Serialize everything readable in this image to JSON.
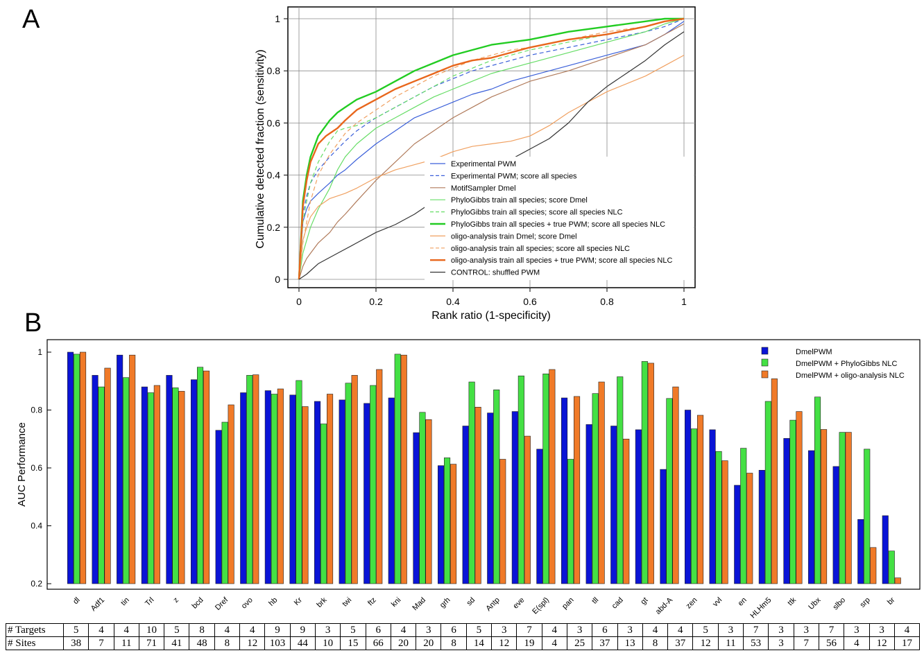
{
  "panel_a": {
    "letter": "A",
    "xlabel": "Rank ratio (1-specificity)",
    "ylabel": "Cumulative detected fraction (sensitivity)",
    "x_ticks": [
      "0",
      "0.2",
      "0.4",
      "0.6",
      "0.8",
      "1"
    ],
    "y_ticks": [
      "0",
      "0.2",
      "0.4",
      "0.6",
      "0.8",
      "1"
    ]
  },
  "panel_b": {
    "letter": "B",
    "ylabel": "AUC Performance",
    "y_ticks": [
      "0.2",
      "0.4",
      "0.6",
      "0.8",
      "1"
    ]
  },
  "table": {
    "targets_label": "# Targets",
    "sites_label": "# Sites",
    "targets": [
      "5",
      "4",
      "4",
      "10",
      "5",
      "8",
      "4",
      "4",
      "9",
      "9",
      "3",
      "5",
      "6",
      "4",
      "3",
      "6",
      "5",
      "3",
      "7",
      "4",
      "3",
      "6",
      "3",
      "4",
      "4",
      "5",
      "3",
      "7",
      "3",
      "3",
      "7",
      "3",
      "3",
      "4"
    ],
    "sites": [
      "38",
      "7",
      "11",
      "71",
      "41",
      "48",
      "8",
      "12",
      "103",
      "44",
      "10",
      "15",
      "66",
      "20",
      "20",
      "8",
      "14",
      "12",
      "19",
      "4",
      "25",
      "37",
      "13",
      "8",
      "37",
      "12",
      "11",
      "53",
      "3",
      "7",
      "56",
      "4",
      "12",
      "17"
    ]
  },
  "chart_data": [
    {
      "type": "line",
      "panel": "A",
      "xlabel": "Rank ratio (1-specificity)",
      "ylabel": "Cumulative detected fraction (sensitivity)",
      "xlim": [
        0,
        1
      ],
      "ylim": [
        0,
        1
      ],
      "grid": true,
      "legend_position": "bottom-right",
      "series": [
        {
          "name": "Experimental PWM",
          "color": "#3a5fd9",
          "style": "solid",
          "width": 1.2,
          "x": [
            0,
            0.01,
            0.02,
            0.03,
            0.05,
            0.08,
            0.1,
            0.12,
            0.15,
            0.2,
            0.25,
            0.3,
            0.35,
            0.4,
            0.45,
            0.5,
            0.55,
            0.6,
            0.7,
            0.8,
            0.9,
            0.95,
            1.0
          ],
          "y": [
            0,
            0.22,
            0.27,
            0.3,
            0.33,
            0.37,
            0.4,
            0.42,
            0.46,
            0.52,
            0.57,
            0.62,
            0.65,
            0.68,
            0.71,
            0.73,
            0.76,
            0.78,
            0.82,
            0.86,
            0.9,
            0.94,
            0.99
          ]
        },
        {
          "name": "Experimental PWM; score all species",
          "color": "#3a5fd9",
          "style": "dashed",
          "width": 1.2,
          "x": [
            0,
            0.01,
            0.02,
            0.03,
            0.05,
            0.08,
            0.1,
            0.12,
            0.15,
            0.2,
            0.25,
            0.3,
            0.35,
            0.4,
            0.45,
            0.5,
            0.55,
            0.6,
            0.7,
            0.8,
            0.9,
            0.95,
            1.0
          ],
          "y": [
            0,
            0.25,
            0.32,
            0.37,
            0.42,
            0.47,
            0.5,
            0.53,
            0.57,
            0.62,
            0.66,
            0.7,
            0.74,
            0.77,
            0.8,
            0.82,
            0.84,
            0.86,
            0.89,
            0.92,
            0.95,
            0.97,
            1.0
          ]
        },
        {
          "name": "MotifSampler Dmel",
          "color": "#b07a5a",
          "style": "solid",
          "width": 1.2,
          "x": [
            0,
            0.01,
            0.02,
            0.03,
            0.05,
            0.08,
            0.1,
            0.12,
            0.15,
            0.2,
            0.25,
            0.3,
            0.35,
            0.4,
            0.45,
            0.5,
            0.55,
            0.6,
            0.7,
            0.8,
            0.9,
            0.95,
            1.0
          ],
          "y": [
            0,
            0.05,
            0.08,
            0.1,
            0.14,
            0.18,
            0.22,
            0.25,
            0.3,
            0.38,
            0.45,
            0.52,
            0.57,
            0.62,
            0.66,
            0.7,
            0.73,
            0.76,
            0.8,
            0.85,
            0.9,
            0.94,
            0.98
          ]
        },
        {
          "name": "PhyloGibbs train all species; score Dmel",
          "color": "#66dd66",
          "style": "solid",
          "width": 1.2,
          "x": [
            0,
            0.01,
            0.02,
            0.03,
            0.05,
            0.08,
            0.1,
            0.12,
            0.15,
            0.2,
            0.25,
            0.3,
            0.35,
            0.4,
            0.45,
            0.5,
            0.55,
            0.6,
            0.7,
            0.8,
            0.9,
            0.95,
            1.0
          ],
          "y": [
            0,
            0.1,
            0.15,
            0.2,
            0.27,
            0.35,
            0.42,
            0.47,
            0.52,
            0.58,
            0.62,
            0.66,
            0.7,
            0.73,
            0.76,
            0.79,
            0.81,
            0.83,
            0.87,
            0.91,
            0.95,
            0.98,
            1.0
          ]
        },
        {
          "name": "PhyloGibbs train all species; score all species NLC",
          "color": "#66dd66",
          "style": "dashed",
          "width": 1.2,
          "x": [
            0,
            0.01,
            0.02,
            0.03,
            0.05,
            0.08,
            0.1,
            0.12,
            0.15,
            0.2,
            0.25,
            0.3,
            0.35,
            0.4,
            0.45,
            0.5,
            0.55,
            0.6,
            0.7,
            0.8,
            0.9,
            0.95,
            1.0
          ],
          "y": [
            0,
            0.22,
            0.3,
            0.37,
            0.45,
            0.53,
            0.57,
            0.58,
            0.59,
            0.62,
            0.66,
            0.7,
            0.74,
            0.78,
            0.81,
            0.84,
            0.86,
            0.88,
            0.91,
            0.94,
            0.97,
            0.99,
            1.0
          ]
        },
        {
          "name": "PhyloGibbs train all species + true PWM; score all species NLC",
          "color": "#22cc22",
          "style": "solid",
          "width": 2.4,
          "x": [
            0,
            0.01,
            0.02,
            0.03,
            0.05,
            0.08,
            0.1,
            0.12,
            0.15,
            0.2,
            0.25,
            0.3,
            0.35,
            0.4,
            0.45,
            0.5,
            0.55,
            0.6,
            0.7,
            0.8,
            0.9,
            0.95,
            1.0
          ],
          "y": [
            0,
            0.3,
            0.4,
            0.47,
            0.55,
            0.61,
            0.64,
            0.66,
            0.69,
            0.72,
            0.76,
            0.8,
            0.83,
            0.86,
            0.88,
            0.9,
            0.91,
            0.92,
            0.95,
            0.97,
            0.99,
            1.0,
            1.0
          ]
        },
        {
          "name": "oligo-analysis train Dmel; score Dmel",
          "color": "#f0a060",
          "style": "solid",
          "width": 1.2,
          "x": [
            0,
            0.01,
            0.02,
            0.03,
            0.05,
            0.08,
            0.1,
            0.12,
            0.15,
            0.2,
            0.25,
            0.3,
            0.35,
            0.4,
            0.45,
            0.5,
            0.55,
            0.6,
            0.65,
            0.7,
            0.8,
            0.9,
            0.95,
            1.0
          ],
          "y": [
            0,
            0.15,
            0.2,
            0.24,
            0.28,
            0.31,
            0.32,
            0.33,
            0.35,
            0.39,
            0.42,
            0.44,
            0.46,
            0.49,
            0.51,
            0.52,
            0.53,
            0.55,
            0.59,
            0.64,
            0.72,
            0.78,
            0.82,
            0.86
          ]
        },
        {
          "name": "oligo-analysis train all species; score all species NLC",
          "color": "#f0a060",
          "style": "dashed",
          "width": 1.2,
          "x": [
            0,
            0.01,
            0.02,
            0.03,
            0.05,
            0.08,
            0.1,
            0.12,
            0.15,
            0.2,
            0.25,
            0.3,
            0.35,
            0.4,
            0.45,
            0.5,
            0.55,
            0.6,
            0.7,
            0.8,
            0.9,
            0.95,
            1.0
          ],
          "y": [
            0,
            0.14,
            0.22,
            0.3,
            0.4,
            0.48,
            0.52,
            0.56,
            0.6,
            0.65,
            0.7,
            0.74,
            0.78,
            0.81,
            0.84,
            0.86,
            0.88,
            0.89,
            0.92,
            0.95,
            0.97,
            0.99,
            1.0
          ]
        },
        {
          "name": "oligo-analysis train all species + true PWM; score all species NLC",
          "color": "#e8661c",
          "style": "solid",
          "width": 2.4,
          "x": [
            0,
            0.01,
            0.02,
            0.03,
            0.05,
            0.07,
            0.08,
            0.1,
            0.12,
            0.15,
            0.2,
            0.25,
            0.3,
            0.35,
            0.4,
            0.45,
            0.5,
            0.55,
            0.6,
            0.7,
            0.8,
            0.9,
            0.95,
            1.0
          ],
          "y": [
            0,
            0.28,
            0.38,
            0.45,
            0.52,
            0.55,
            0.56,
            0.58,
            0.61,
            0.65,
            0.69,
            0.73,
            0.76,
            0.79,
            0.82,
            0.84,
            0.85,
            0.87,
            0.89,
            0.92,
            0.94,
            0.97,
            0.99,
            1.0
          ]
        },
        {
          "name": "CONTROL: shuffled PWM",
          "color": "#333333",
          "style": "solid",
          "width": 1.2,
          "x": [
            0,
            0.02,
            0.05,
            0.1,
            0.15,
            0.2,
            0.25,
            0.3,
            0.35,
            0.4,
            0.45,
            0.5,
            0.55,
            0.6,
            0.65,
            0.7,
            0.75,
            0.8,
            0.85,
            0.9,
            0.95,
            1.0
          ],
          "y": [
            0,
            0.02,
            0.06,
            0.1,
            0.14,
            0.18,
            0.21,
            0.25,
            0.3,
            0.34,
            0.38,
            0.43,
            0.46,
            0.5,
            0.54,
            0.6,
            0.68,
            0.74,
            0.79,
            0.84,
            0.9,
            0.95
          ]
        }
      ]
    },
    {
      "type": "bar",
      "panel": "B",
      "ylabel": "AUC Performance",
      "ylim": [
        0.2,
        1.0
      ],
      "legend_position": "top-right",
      "categories": [
        "dl",
        "Adf1",
        "tin",
        "Trl",
        "z",
        "bcd",
        "Dref",
        "ovo",
        "hb",
        "Kr",
        "brk",
        "twi",
        "ftz",
        "kni",
        "Mad",
        "grh",
        "sd",
        "Antp",
        "eve",
        "E(spl)",
        "pan",
        "tll",
        "cad",
        "gt",
        "abd-A",
        "zen",
        "vvl",
        "en",
        "HLHm5",
        "ttk",
        "Ubx",
        "slbo",
        "srp",
        "br"
      ],
      "series": [
        {
          "name": "DmelPWM",
          "color": "#0a14d6",
          "values": [
            1.0,
            0.92,
            0.99,
            0.88,
            0.92,
            0.905,
            0.73,
            0.86,
            0.867,
            0.852,
            0.83,
            0.835,
            0.823,
            0.842,
            0.722,
            0.608,
            0.745,
            0.79,
            0.795,
            0.665,
            0.842,
            0.75,
            0.745,
            0.732,
            0.595,
            0.8,
            0.732,
            0.54,
            0.592,
            0.702,
            0.66,
            0.605,
            0.422,
            0.435
          ]
        },
        {
          "name": "DmelPWM + PhyloGibbs NLC",
          "color": "#44e044",
          "values": [
            0.993,
            0.88,
            0.912,
            0.86,
            0.877,
            0.948,
            0.758,
            0.92,
            0.855,
            0.902,
            0.752,
            0.893,
            0.885,
            0.993,
            0.792,
            0.635,
            0.897,
            0.87,
            0.918,
            0.925,
            0.63,
            0.857,
            0.915,
            0.968,
            0.84,
            0.735,
            0.657,
            0.668,
            0.83,
            0.765,
            0.845,
            0.723,
            0.665,
            0.313
          ]
        },
        {
          "name": "DmelPWM + oligo-analysis NLC",
          "color": "#f07a28",
          "values": [
            1.0,
            0.945,
            0.99,
            0.885,
            0.865,
            0.935,
            0.818,
            0.922,
            0.873,
            0.812,
            0.855,
            0.92,
            0.94,
            0.99,
            0.767,
            0.613,
            0.81,
            0.63,
            0.71,
            0.94,
            0.847,
            0.897,
            0.7,
            0.962,
            0.88,
            0.782,
            0.625,
            0.582,
            0.908,
            0.795,
            0.733,
            0.723,
            0.325,
            0.22
          ]
        }
      ]
    }
  ]
}
